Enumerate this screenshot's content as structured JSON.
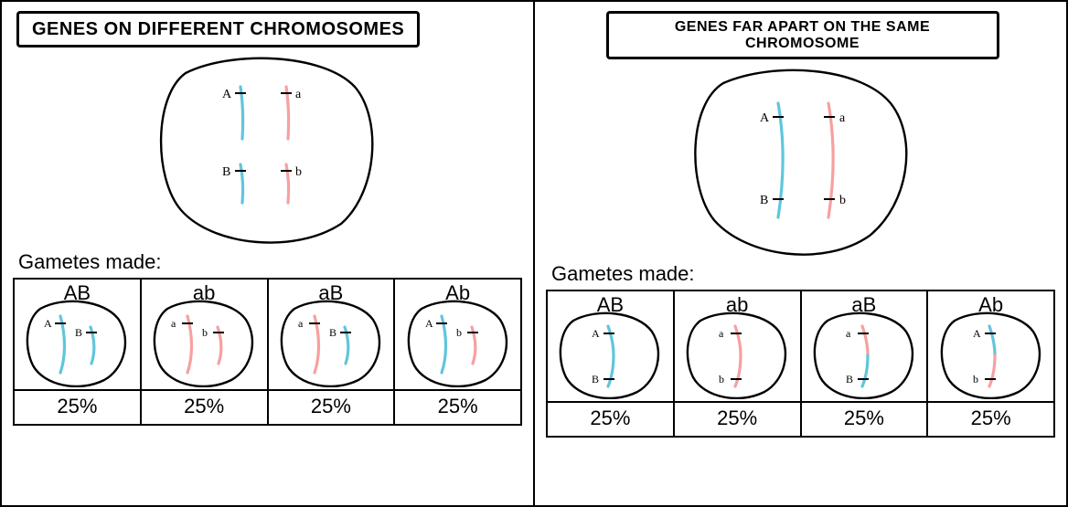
{
  "colors": {
    "blue": "#5fc6db",
    "pink": "#f7a0a0",
    "black": "#000000",
    "stroke_width_chrom": 3.2,
    "cell_stroke": 2.4
  },
  "left": {
    "title": "GENES ON DIFFERENT CHROMOSOMES",
    "title_fontsize": 20,
    "gametes_label": "Gametes made:",
    "parent": {
      "alleles": {
        "A": "A",
        "a": "a",
        "B": "B",
        "b": "b"
      }
    },
    "gametes": [
      {
        "label": "AB",
        "pct": "25%",
        "chroms": [
          {
            "color": "blue",
            "allele": "A"
          },
          {
            "color": "blue",
            "allele": "B",
            "short": true
          }
        ]
      },
      {
        "label": "ab",
        "pct": "25%",
        "chroms": [
          {
            "color": "pink",
            "allele": "a"
          },
          {
            "color": "pink",
            "allele": "b",
            "short": true
          }
        ]
      },
      {
        "label": "aB",
        "pct": "25%",
        "chroms": [
          {
            "color": "pink",
            "allele": "a"
          },
          {
            "color": "blue",
            "allele": "B",
            "short": true
          }
        ]
      },
      {
        "label": "Ab",
        "pct": "25%",
        "chroms": [
          {
            "color": "blue",
            "allele": "A"
          },
          {
            "color": "pink",
            "allele": "b",
            "short": true
          }
        ]
      }
    ]
  },
  "right": {
    "title": "GENES FAR APART ON THE SAME CHROMOSOME",
    "title_fontsize": 20,
    "gametes_label": "Gametes made:",
    "parent": {
      "alleles": {
        "A": "A",
        "a": "a",
        "B": "B",
        "b": "b"
      }
    },
    "gametes": [
      {
        "label": "AB",
        "pct": "25%",
        "segments": [
          {
            "color": "blue",
            "allele": "A"
          },
          {
            "color": "blue",
            "allele": "B"
          }
        ]
      },
      {
        "label": "ab",
        "pct": "25%",
        "segments": [
          {
            "color": "pink",
            "allele": "a"
          },
          {
            "color": "pink",
            "allele": "b"
          }
        ]
      },
      {
        "label": "aB",
        "pct": "25%",
        "segments": [
          {
            "color": "pink",
            "allele": "a"
          },
          {
            "color": "blue",
            "allele": "B"
          }
        ]
      },
      {
        "label": "Ab",
        "pct": "25%",
        "segments": [
          {
            "color": "blue",
            "allele": "A"
          },
          {
            "color": "pink",
            "allele": "b"
          }
        ]
      }
    ]
  }
}
